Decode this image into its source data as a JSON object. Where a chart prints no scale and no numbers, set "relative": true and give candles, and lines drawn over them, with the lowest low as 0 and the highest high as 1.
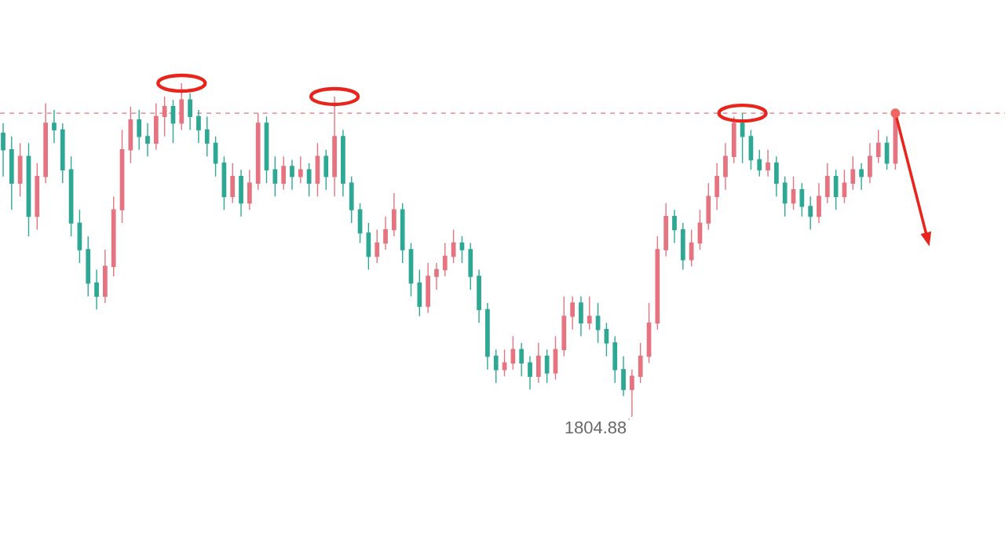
{
  "chart_data": {
    "type": "candlestick",
    "relative": true,
    "categories": [
      null,
      null,
      null,
      null,
      null,
      null,
      null,
      null,
      null,
      null,
      null,
      null,
      null,
      null,
      null,
      null,
      null,
      null,
      null,
      null,
      null,
      null,
      null,
      null,
      null,
      null,
      null,
      null,
      null,
      null,
      null,
      null,
      null,
      null,
      null,
      null,
      null,
      null,
      null,
      null,
      null,
      null,
      null,
      null,
      null,
      null,
      null,
      null,
      null,
      null,
      null,
      null,
      null,
      null,
      null,
      null,
      null,
      null,
      null,
      null,
      null,
      null,
      null,
      null,
      null,
      null,
      null,
      null,
      null,
      null,
      null,
      null,
      null,
      null,
      null,
      null,
      null,
      null,
      null,
      null,
      null,
      null,
      null,
      null,
      null,
      null,
      null,
      null,
      null,
      null,
      null,
      null,
      null,
      null,
      null,
      null,
      null,
      null,
      null,
      null,
      null,
      null,
      null,
      null,
      null,
      null
    ],
    "ohlc": [
      [
        0.85,
        0.88,
        0.72,
        0.8
      ],
      [
        0.8,
        0.84,
        0.62,
        0.7
      ],
      [
        0.7,
        0.82,
        0.66,
        0.78
      ],
      [
        0.78,
        0.82,
        0.54,
        0.6
      ],
      [
        0.6,
        0.76,
        0.56,
        0.72
      ],
      [
        0.72,
        0.94,
        0.7,
        0.88
      ],
      [
        0.88,
        0.92,
        0.82,
        0.86
      ],
      [
        0.86,
        0.88,
        0.7,
        0.74
      ],
      [
        0.74,
        0.78,
        0.54,
        0.58
      ],
      [
        0.58,
        0.62,
        0.46,
        0.5
      ],
      [
        0.5,
        0.54,
        0.36,
        0.4
      ],
      [
        0.4,
        0.44,
        0.32,
        0.36
      ],
      [
        0.36,
        0.5,
        0.34,
        0.45
      ],
      [
        0.45,
        0.66,
        0.42,
        0.62
      ],
      [
        0.62,
        0.86,
        0.58,
        0.8
      ],
      [
        0.8,
        0.93,
        0.76,
        0.89
      ],
      [
        0.89,
        0.92,
        0.8,
        0.84
      ],
      [
        0.84,
        0.88,
        0.78,
        0.82
      ],
      [
        0.82,
        0.94,
        0.8,
        0.9
      ],
      [
        0.9,
        0.96,
        0.84,
        0.93
      ],
      [
        0.93,
        0.95,
        0.82,
        0.88
      ],
      [
        0.88,
        1.0,
        0.86,
        0.95
      ],
      [
        0.95,
        0.97,
        0.86,
        0.9
      ],
      [
        0.9,
        0.92,
        0.82,
        0.86
      ],
      [
        0.86,
        0.9,
        0.78,
        0.82
      ],
      [
        0.82,
        0.84,
        0.72,
        0.76
      ],
      [
        0.76,
        0.78,
        0.62,
        0.66
      ],
      [
        0.66,
        0.76,
        0.64,
        0.72
      ],
      [
        0.72,
        0.74,
        0.6,
        0.64
      ],
      [
        0.64,
        0.74,
        0.62,
        0.7
      ],
      [
        0.7,
        0.91,
        0.68,
        0.88
      ],
      [
        0.88,
        0.9,
        0.7,
        0.74
      ],
      [
        0.74,
        0.78,
        0.66,
        0.7
      ],
      [
        0.7,
        0.78,
        0.68,
        0.75
      ],
      [
        0.75,
        0.77,
        0.68,
        0.72
      ],
      [
        0.72,
        0.78,
        0.7,
        0.74
      ],
      [
        0.74,
        0.76,
        0.66,
        0.7
      ],
      [
        0.7,
        0.82,
        0.66,
        0.78
      ],
      [
        0.78,
        0.8,
        0.68,
        0.72
      ],
      [
        0.72,
        0.96,
        0.66,
        0.84
      ],
      [
        0.84,
        0.86,
        0.66,
        0.7
      ],
      [
        0.7,
        0.72,
        0.58,
        0.62
      ],
      [
        0.62,
        0.64,
        0.52,
        0.55
      ],
      [
        0.55,
        0.58,
        0.44,
        0.48
      ],
      [
        0.48,
        0.56,
        0.46,
        0.52
      ],
      [
        0.52,
        0.6,
        0.5,
        0.56
      ],
      [
        0.56,
        0.67,
        0.54,
        0.62
      ],
      [
        0.62,
        0.64,
        0.46,
        0.5
      ],
      [
        0.5,
        0.52,
        0.36,
        0.4
      ],
      [
        0.4,
        0.44,
        0.3,
        0.33
      ],
      [
        0.33,
        0.46,
        0.31,
        0.42
      ],
      [
        0.42,
        0.46,
        0.38,
        0.44
      ],
      [
        0.44,
        0.52,
        0.42,
        0.48
      ],
      [
        0.48,
        0.56,
        0.46,
        0.52
      ],
      [
        0.52,
        0.54,
        0.46,
        0.5
      ],
      [
        0.5,
        0.52,
        0.38,
        0.42
      ],
      [
        0.42,
        0.44,
        0.28,
        0.32
      ],
      [
        0.32,
        0.34,
        0.14,
        0.18
      ],
      [
        0.18,
        0.2,
        0.1,
        0.14
      ],
      [
        0.14,
        0.2,
        0.12,
        0.16
      ],
      [
        0.16,
        0.24,
        0.14,
        0.2
      ],
      [
        0.2,
        0.22,
        0.12,
        0.16
      ],
      [
        0.16,
        0.18,
        0.08,
        0.12
      ],
      [
        0.12,
        0.22,
        0.1,
        0.18
      ],
      [
        0.18,
        0.2,
        0.1,
        0.13
      ],
      [
        0.13,
        0.24,
        0.11,
        0.2
      ],
      [
        0.2,
        0.36,
        0.18,
        0.3
      ],
      [
        0.3,
        0.36,
        0.26,
        0.34
      ],
      [
        0.34,
        0.36,
        0.24,
        0.28
      ],
      [
        0.28,
        0.36,
        0.26,
        0.3
      ],
      [
        0.3,
        0.34,
        0.22,
        0.26
      ],
      [
        0.26,
        0.28,
        0.18,
        0.22
      ],
      [
        0.22,
        0.24,
        0.1,
        0.14
      ],
      [
        0.14,
        0.18,
        0.06,
        0.08
      ],
      [
        0.08,
        0.14,
        0.0,
        0.12
      ],
      [
        0.12,
        0.22,
        0.1,
        0.18
      ],
      [
        0.18,
        0.34,
        0.16,
        0.28
      ],
      [
        0.28,
        0.54,
        0.26,
        0.5
      ],
      [
        0.5,
        0.64,
        0.48,
        0.6
      ],
      [
        0.6,
        0.62,
        0.52,
        0.56
      ],
      [
        0.56,
        0.58,
        0.44,
        0.47
      ],
      [
        0.47,
        0.56,
        0.45,
        0.52
      ],
      [
        0.52,
        0.62,
        0.5,
        0.58
      ],
      [
        0.58,
        0.7,
        0.56,
        0.66
      ],
      [
        0.66,
        0.76,
        0.62,
        0.72
      ],
      [
        0.72,
        0.82,
        0.68,
        0.78
      ],
      [
        0.78,
        0.9,
        0.76,
        0.88
      ],
      [
        0.88,
        0.91,
        0.76,
        0.84
      ],
      [
        0.84,
        0.86,
        0.74,
        0.77
      ],
      [
        0.77,
        0.8,
        0.72,
        0.74
      ],
      [
        0.74,
        0.8,
        0.72,
        0.76
      ],
      [
        0.76,
        0.78,
        0.66,
        0.7
      ],
      [
        0.7,
        0.72,
        0.6,
        0.64
      ],
      [
        0.64,
        0.72,
        0.62,
        0.68
      ],
      [
        0.68,
        0.7,
        0.6,
        0.63
      ],
      [
        0.63,
        0.66,
        0.56,
        0.6
      ],
      [
        0.6,
        0.7,
        0.58,
        0.66
      ],
      [
        0.66,
        0.76,
        0.64,
        0.72
      ],
      [
        0.72,
        0.74,
        0.62,
        0.66
      ],
      [
        0.66,
        0.74,
        0.64,
        0.7
      ],
      [
        0.7,
        0.78,
        0.68,
        0.74
      ],
      [
        0.74,
        0.76,
        0.68,
        0.72
      ],
      [
        0.72,
        0.82,
        0.7,
        0.78
      ],
      [
        0.78,
        0.86,
        0.76,
        0.82
      ],
      [
        0.82,
        0.84,
        0.74,
        0.76
      ],
      [
        0.76,
        0.91,
        0.74,
        0.9
      ]
    ],
    "colors": [
      "#2ea894",
      "#2ea894",
      "#e57380",
      "#2ea894",
      "#e57380",
      "#e57380",
      "#2ea894",
      "#2ea894",
      "#2ea894",
      "#2ea894",
      "#2ea894",
      "#2ea894",
      "#e57380",
      "#e57380",
      "#e57380",
      "#e57380",
      "#2ea894",
      "#2ea894",
      "#e57380",
      "#e57380",
      "#2ea894",
      "#e57380",
      "#2ea894",
      "#2ea894",
      "#2ea894",
      "#2ea894",
      "#2ea894",
      "#e57380",
      "#2ea894",
      "#e57380",
      "#e57380",
      "#2ea894",
      "#2ea894",
      "#e57380",
      "#2ea894",
      "#e57380",
      "#2ea894",
      "#e57380",
      "#2ea894",
      "#e57380",
      "#2ea894",
      "#2ea894",
      "#2ea894",
      "#2ea894",
      "#e57380",
      "#e57380",
      "#e57380",
      "#2ea894",
      "#2ea894",
      "#2ea894",
      "#e57380",
      "#e57380",
      "#e57380",
      "#e57380",
      "#2ea894",
      "#2ea894",
      "#2ea894",
      "#2ea894",
      "#2ea894",
      "#e57380",
      "#e57380",
      "#2ea894",
      "#2ea894",
      "#e57380",
      "#2ea894",
      "#e57380",
      "#e57380",
      "#e57380",
      "#2ea894",
      "#e57380",
      "#2ea894",
      "#2ea894",
      "#2ea894",
      "#2ea894",
      "#e57380",
      "#e57380",
      "#e57380",
      "#e57380",
      "#e57380",
      "#2ea894",
      "#2ea894",
      "#e57380",
      "#e57380",
      "#e57380",
      "#e57380",
      "#e57380",
      "#e57380",
      "#2ea894",
      "#2ea894",
      "#2ea894",
      "#e57380",
      "#2ea894",
      "#2ea894",
      "#e57380",
      "#2ea894",
      "#2ea894",
      "#e57380",
      "#e57380",
      "#2ea894",
      "#e57380",
      "#e57380",
      "#2ea894",
      "#e57380",
      "#e57380",
      "#2ea894",
      "#e57380"
    ],
    "ref_lines": [
      {
        "axis": "y",
        "value": 0.91,
        "color": "#e57380",
        "line_style": "dashed"
      }
    ],
    "annotations": [
      "1804.88"
    ]
  }
}
